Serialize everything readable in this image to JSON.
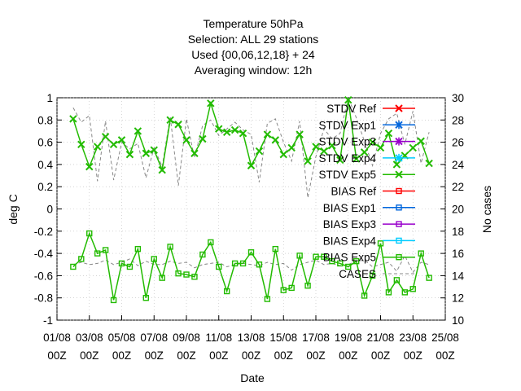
{
  "title_lines": [
    "Temperature 50hPa",
    "Selection: ALL      29 stations",
    "Used {00,06,12,18} + 24",
    "Averaging window: 12h"
  ],
  "chart_data": {
    "type": "line",
    "xlabel": "Date",
    "ylabel": "deg C",
    "y2label": "No cases",
    "ylim": [
      -1,
      1
    ],
    "y2lim": [
      10,
      30
    ],
    "xlim": [
      0,
      24
    ],
    "x_ticks": [
      {
        "x": 0,
        "l1": "01/08",
        "l2": "00Z"
      },
      {
        "x": 2,
        "l1": "03/08",
        "l2": "00Z"
      },
      {
        "x": 4,
        "l1": "05/08",
        "l2": "00Z"
      },
      {
        "x": 6,
        "l1": "07/08",
        "l2": "00Z"
      },
      {
        "x": 8,
        "l1": "09/08",
        "l2": "00Z"
      },
      {
        "x": 10,
        "l1": "11/08",
        "l2": "00Z"
      },
      {
        "x": 12,
        "l1": "13/08",
        "l2": "00Z"
      },
      {
        "x": 14,
        "l1": "15/08",
        "l2": "00Z"
      },
      {
        "x": 16,
        "l1": "17/08",
        "l2": "00Z"
      },
      {
        "x": 18,
        "l1": "19/08",
        "l2": "00Z"
      },
      {
        "x": 20,
        "l1": "21/08",
        "l2": "00Z"
      },
      {
        "x": 22,
        "l1": "23/08",
        "l2": "00Z"
      },
      {
        "x": 24,
        "l1": "25/08",
        "l2": "00Z"
      }
    ],
    "y_ticks": [
      "1",
      "0.8",
      "0.6",
      "0.4",
      "0.2",
      "0",
      "-0.2",
      "-0.4",
      "-0.6",
      "-0.8",
      "-1"
    ],
    "y2_ticks": [
      "30",
      "28",
      "26",
      "24",
      "22",
      "20",
      "18",
      "16",
      "14",
      "12",
      "10"
    ],
    "x": [
      1.0,
      1.5,
      2.0,
      2.5,
      3.0,
      3.5,
      4.0,
      4.5,
      5.0,
      5.5,
      6.0,
      6.5,
      7.0,
      7.5,
      8.0,
      8.5,
      9.0,
      9.5,
      10.0,
      10.5,
      11.0,
      11.5,
      12.0,
      12.5,
      13.0,
      13.5,
      14.0,
      14.5,
      15.0,
      15.5,
      16.0,
      16.5,
      17.0,
      17.5,
      18.0,
      18.5,
      19.0,
      19.5,
      20.0,
      20.5,
      21.0,
      21.5,
      22.0,
      22.5,
      23.0
    ],
    "stdv": [
      0.81,
      0.58,
      0.38,
      0.56,
      0.65,
      0.58,
      0.62,
      0.49,
      0.7,
      0.5,
      0.53,
      0.35,
      0.8,
      0.76,
      0.62,
      0.5,
      0.63,
      0.95,
      0.72,
      0.69,
      0.71,
      0.68,
      0.39,
      0.52,
      0.67,
      0.62,
      0.49,
      0.55,
      0.67,
      0.43,
      0.56,
      0.52,
      0.57,
      0.44,
      0.98,
      0.45,
      0.51,
      0.6,
      0.55,
      0.68,
      0.4,
      0.48,
      0.55,
      0.61,
      0.41
    ],
    "bias": [
      -0.52,
      -0.45,
      -0.22,
      -0.4,
      -0.37,
      -0.82,
      -0.49,
      -0.52,
      -0.36,
      -0.8,
      -0.45,
      -0.62,
      -0.34,
      -0.58,
      -0.59,
      -0.61,
      -0.41,
      -0.3,
      -0.52,
      -0.74,
      -0.49,
      -0.49,
      -0.39,
      -0.5,
      -0.81,
      -0.36,
      -0.73,
      -0.71,
      -0.42,
      -0.69,
      -0.43,
      -0.43,
      -0.47,
      -0.49,
      -0.52,
      -0.47,
      -0.78,
      -0.6,
      -0.31,
      -0.75,
      -0.64,
      -0.75,
      -0.72,
      -0.4,
      -0.62
    ],
    "cases": [
      29.1,
      27.8,
      28.4,
      22.5,
      27.9,
      22.6,
      26.0,
      25.4,
      25.9,
      22.8,
      25.5,
      23.8,
      28.3,
      22.1,
      28.1,
      24.6,
      27.5,
      28.0,
      26.6,
      27.2,
      27.8,
      27.1,
      26.7,
      22.4,
      27.7,
      28.1,
      26.0,
      24.3,
      27.9,
      21.0,
      24.7,
      27.2,
      26.3,
      26.8,
      30.0,
      28.2,
      26.1,
      23.9,
      26.8,
      28.1,
      28.6,
      25.8,
      28.8,
      24.1,
      26.9
    ],
    "cases_lower": [
      15.0,
      15.2,
      15.0,
      15.1,
      15.4,
      15.0,
      15.2,
      15.5,
      14.9,
      15.3,
      15.0,
      15.0,
      15.3,
      15.1,
      15.2,
      14.7,
      15.0,
      15.1,
      15.2,
      14.8,
      15.0,
      15.1,
      15.0,
      14.9,
      15.2,
      15.0,
      15.1,
      14.5,
      15.0,
      15.2,
      15.4,
      15.0,
      15.1,
      14.9,
      15.0,
      15.3,
      15.4,
      14.8,
      15.0,
      15.2,
      14.4,
      15.8,
      14.3,
      15.2,
      15.0
    ],
    "series": [
      {
        "name": "STDV Ref",
        "color": "#ff0000",
        "marker": "x"
      },
      {
        "name": "STDV Exp1",
        "color": "#0066dd",
        "marker": "star"
      },
      {
        "name": "STDV Exp3",
        "color": "#9900cc",
        "marker": "star"
      },
      {
        "name": "STDV Exp4",
        "color": "#00ccff",
        "marker": "star"
      },
      {
        "name": "STDV Exp5",
        "color": "#22bb00",
        "marker": "x"
      },
      {
        "name": "BIAS Ref",
        "color": "#ff0000",
        "marker": "square"
      },
      {
        "name": "BIAS Exp1",
        "color": "#0066dd",
        "marker": "square"
      },
      {
        "name": "BIAS Exp3",
        "color": "#9900cc",
        "marker": "square"
      },
      {
        "name": "BIAS Exp4",
        "color": "#00ccff",
        "marker": "square"
      },
      {
        "name": "BIAS Exp5",
        "color": "#22bb00",
        "marker": "square"
      },
      {
        "name": "CASES",
        "color": "#888888",
        "marker": "dash"
      }
    ]
  }
}
